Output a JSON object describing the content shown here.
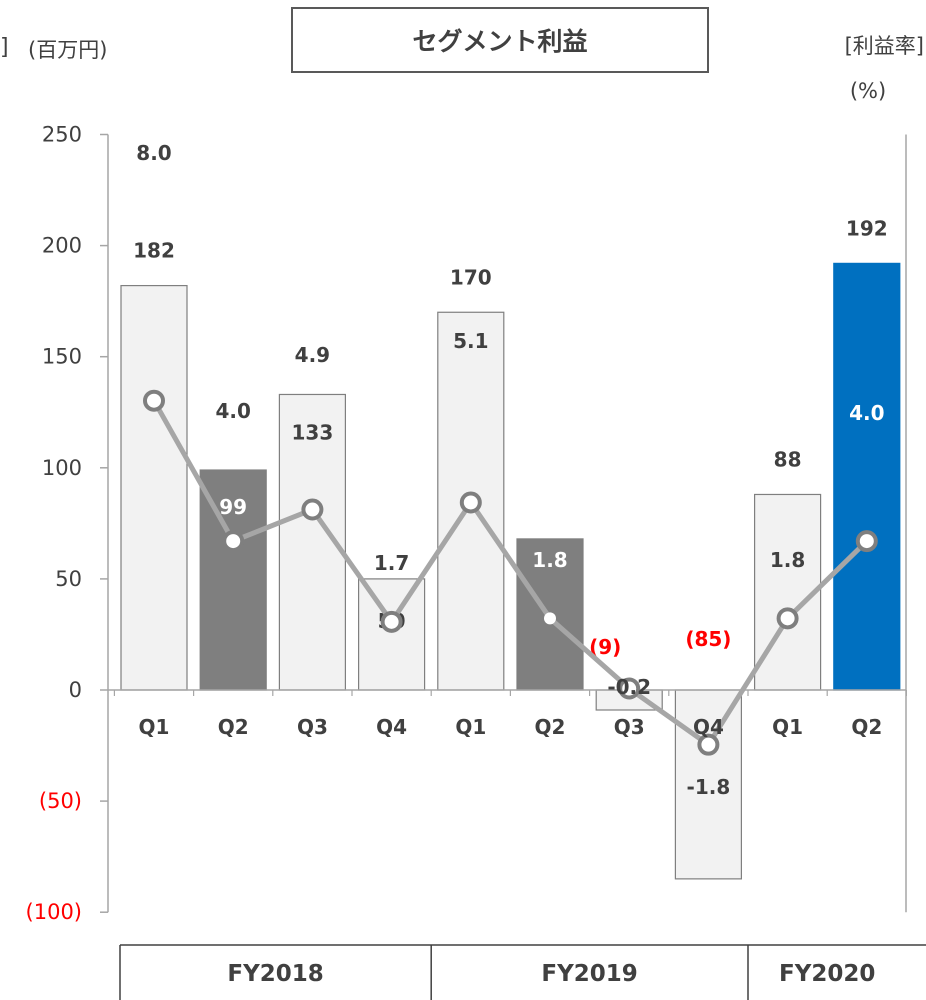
{
  "header": {
    "title": "セグメント利益",
    "left_unit": "(百万円)",
    "left_bracket": "]",
    "right_label": "[利益率]",
    "right_unit": "(%)"
  },
  "chart_data": {
    "type": "bar",
    "title": "セグメント利益",
    "categories": [
      "Q1",
      "Q2",
      "Q3",
      "Q4",
      "Q1",
      "Q2",
      "Q3",
      "Q4",
      "Q1",
      "Q2"
    ],
    "fiscal_years": [
      {
        "label": "FY2018",
        "quarters": 4
      },
      {
        "label": "FY2019",
        "quarters": 4
      },
      {
        "label": "FY2020",
        "quarters": 2
      }
    ],
    "ylim": [
      -100,
      250
    ],
    "yticks": [
      250,
      200,
      150,
      100,
      50,
      0,
      -50,
      -100
    ],
    "ytick_labels": [
      "250",
      "200",
      "150",
      "100",
      "50",
      "0",
      "(50)",
      "(100)"
    ],
    "series": [
      {
        "name": "セグメント利益",
        "unit": "百万円",
        "values": [
          182,
          99,
          133,
          50,
          170,
          68,
          -9,
          -85,
          88,
          192
        ],
        "labels": [
          "182",
          "99",
          "133",
          "50",
          "170",
          "68",
          "(9)",
          "(85)",
          "88",
          "192"
        ]
      },
      {
        "name": "利益率",
        "unit": "%",
        "values": [
          8.0,
          4.0,
          4.9,
          1.7,
          5.1,
          1.8,
          -0.2,
          -1.8,
          1.8,
          4.0
        ],
        "labels": [
          "8.0",
          "4.0",
          "4.9",
          "1.7",
          "5.1",
          "1.8",
          "-0.2",
          "-1.8",
          "1.8",
          "4.0"
        ]
      }
    ],
    "bar_colors": [
      "#f2f2f2",
      "#7f7f7f",
      "#f2f2f2",
      "#f2f2f2",
      "#f2f2f2",
      "#7f7f7f",
      "#f2f2f2",
      "#f2f2f2",
      "#f2f2f2",
      "#0070c0"
    ],
    "line_color": "#a6a6a6",
    "negative_label_color": "#ff0000"
  }
}
